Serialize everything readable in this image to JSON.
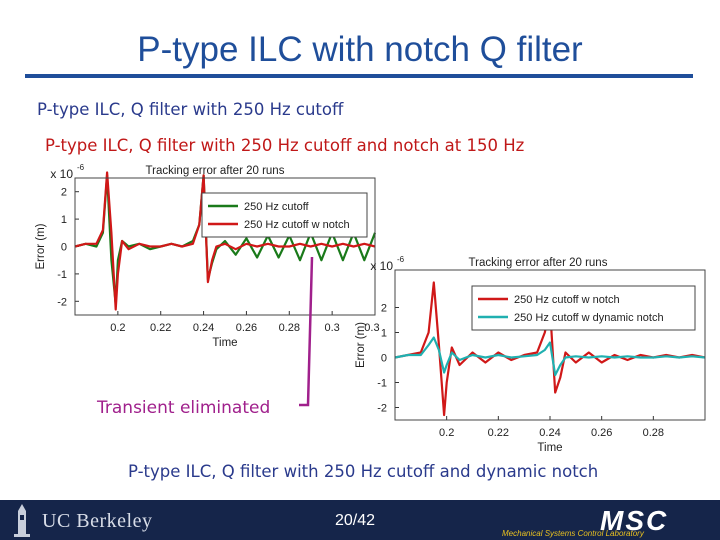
{
  "slide": {
    "title": "P-type ILC with notch Q filter",
    "caption1": "P-type ILC, Q filter with 250 Hz cutoff",
    "caption2": "P-type ILC, Q filter with 250 Hz cutoff and notch at 150 Hz",
    "caption3": "P-type ILC, Q filter with 250 Hz cutoff and dynamic notch",
    "annotation": "Transient eliminated",
    "page_number": "20/42"
  },
  "footer": {
    "university": "UC Berkeley",
    "lab_logo": "MSC",
    "lab_name": "Mechanical Systems Control Laboratory"
  },
  "colors": {
    "title": "#1f4e9a",
    "caption_blue": "#2a3a8c",
    "caption_red": "#c01818",
    "annotation": "#a0208c",
    "green": "#1a7a1a",
    "red": "#d01818",
    "cyan": "#20b0b0",
    "footer_bg": "#15254a"
  },
  "chart_data": [
    {
      "type": "line",
      "title": "Tracking error after 20 runs",
      "xlabel": "Time",
      "ylabel": "Error (m)",
      "y_multiplier": "x 10",
      "y_exponent": "-6",
      "xlim": [
        0.18,
        0.32
      ],
      "ylim": [
        -2.5,
        2.5
      ],
      "xticks": [
        "0.2",
        "0.22",
        "0.24",
        "0.26",
        "0.28",
        "0.3",
        "0.32"
      ],
      "yticks": [
        "-2",
        "-1",
        "0",
        "1",
        "2"
      ],
      "legend_position": "top-right",
      "series": [
        {
          "name": "250 Hz cutoff",
          "color": "#1a7a1a",
          "x": [
            0.18,
            0.185,
            0.19,
            0.193,
            0.195,
            0.197,
            0.199,
            0.2,
            0.202,
            0.205,
            0.21,
            0.215,
            0.22,
            0.225,
            0.23,
            0.235,
            0.238,
            0.24,
            0.242,
            0.244,
            0.246,
            0.25,
            0.255,
            0.26,
            0.265,
            0.27,
            0.275,
            0.28,
            0.285,
            0.29,
            0.295,
            0.3,
            0.305,
            0.31,
            0.315,
            0.32
          ],
          "y": [
            0,
            0.1,
            0,
            0.5,
            2.6,
            -0.5,
            -2.1,
            -0.5,
            0.2,
            0,
            0.1,
            -0.1,
            0,
            0.1,
            0,
            0.2,
            0.8,
            2.6,
            -1.2,
            -0.6,
            -0.1,
            0.2,
            -0.3,
            0.3,
            -0.4,
            0.4,
            -0.4,
            0.4,
            -0.5,
            0.5,
            -0.5,
            0.5,
            -0.5,
            0.5,
            -0.5,
            0.5
          ]
        },
        {
          "name": "250 Hz cutoff w notch",
          "color": "#d01818",
          "x": [
            0.18,
            0.185,
            0.19,
            0.193,
            0.195,
            0.197,
            0.199,
            0.2,
            0.202,
            0.205,
            0.21,
            0.215,
            0.22,
            0.225,
            0.23,
            0.235,
            0.238,
            0.24,
            0.242,
            0.244,
            0.246,
            0.25,
            0.255,
            0.26,
            0.265,
            0.27,
            0.275,
            0.28,
            0.285,
            0.29,
            0.295,
            0.3,
            0.305,
            0.31,
            0.315,
            0.32
          ],
          "y": [
            0,
            0.1,
            0.1,
            0.6,
            2.7,
            0.5,
            -2.3,
            -1.0,
            0.2,
            -0.1,
            0.1,
            0,
            0,
            0.1,
            0,
            0.1,
            0.8,
            2.6,
            -1.3,
            -0.5,
            0,
            0.1,
            -0.1,
            0.1,
            0,
            0.1,
            0,
            0,
            0.1,
            0,
            0.1,
            0,
            0.1,
            0,
            0.1,
            0
          ]
        }
      ]
    },
    {
      "type": "line",
      "title": "Tracking error after 20 runs",
      "xlabel": "Time",
      "ylabel": "Error (m)",
      "y_multiplier": "x 10",
      "y_exponent": "-6",
      "xlim": [
        0.18,
        0.3
      ],
      "ylim": [
        -2.5,
        3.5
      ],
      "xticks": [
        "0.2",
        "0.22",
        "0.24",
        "0.26",
        "0.28"
      ],
      "yticks": [
        "-2",
        "-1",
        "0",
        "1",
        "2"
      ],
      "legend_position": "top-right",
      "series": [
        {
          "name": "250 Hz cutoff w notch",
          "color": "#d01818",
          "x": [
            0.18,
            0.185,
            0.19,
            0.193,
            0.195,
            0.197,
            0.199,
            0.2,
            0.202,
            0.205,
            0.21,
            0.215,
            0.22,
            0.225,
            0.23,
            0.235,
            0.238,
            0.24,
            0.242,
            0.244,
            0.246,
            0.25,
            0.255,
            0.26,
            0.265,
            0.27,
            0.275,
            0.28,
            0.285,
            0.29,
            0.295,
            0.3
          ],
          "y": [
            0,
            0.1,
            0.2,
            1.0,
            3.0,
            0.5,
            -2.3,
            -1.0,
            0.4,
            -0.3,
            0.2,
            -0.2,
            0.2,
            -0.1,
            0.1,
            0.2,
            1.0,
            2.0,
            -1.4,
            -0.8,
            0.2,
            -0.2,
            0.2,
            -0.2,
            0.1,
            -0.1,
            0.1,
            0,
            0.1,
            0,
            0.1,
            0
          ]
        },
        {
          "name": "250 Hz cutoff w dynamic notch",
          "color": "#20b0b0",
          "x": [
            0.18,
            0.185,
            0.19,
            0.193,
            0.195,
            0.197,
            0.199,
            0.2,
            0.202,
            0.205,
            0.21,
            0.215,
            0.22,
            0.225,
            0.23,
            0.235,
            0.238,
            0.24,
            0.242,
            0.244,
            0.246,
            0.25,
            0.255,
            0.26,
            0.265,
            0.27,
            0.275,
            0.28,
            0.285,
            0.29,
            0.295,
            0.3
          ],
          "y": [
            0,
            0.1,
            0.1,
            0.5,
            0.8,
            0.3,
            -0.6,
            -0.3,
            0.2,
            -0.1,
            0.1,
            0,
            0.1,
            0,
            0.05,
            0.1,
            0.3,
            0.6,
            -0.7,
            -0.3,
            0,
            0.05,
            0,
            0.05,
            0,
            0.05,
            0,
            0,
            0.05,
            0,
            0.05,
            0
          ]
        }
      ]
    }
  ]
}
